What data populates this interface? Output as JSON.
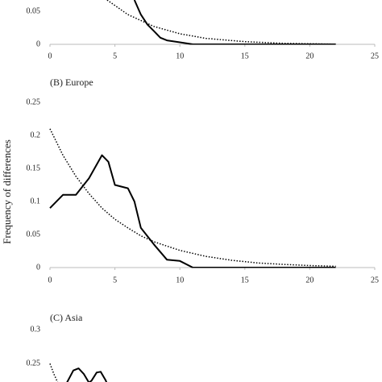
{
  "chart_data": [
    {
      "type": "line",
      "xlim": [
        0,
        25
      ],
      "xticks": [
        0,
        5,
        10,
        15,
        20,
        25
      ],
      "ylim": [
        0,
        0.067
      ],
      "yticks": [
        0,
        0.05
      ],
      "series": [
        {
          "color": "#000000",
          "style": "solid",
          "x": [
            6.5,
            7,
            7.5,
            8,
            8.5,
            9,
            10,
            11,
            12,
            22
          ],
          "values": [
            0.067,
            0.045,
            0.03,
            0.02,
            0.01,
            0.006,
            0.003,
            0,
            0,
            0
          ]
        },
        {
          "color": "#000000",
          "style": "dotted",
          "x": [
            4.4,
            6,
            8,
            10,
            12,
            15,
            18,
            22
          ],
          "values": [
            0.067,
            0.045,
            0.027,
            0.016,
            0.009,
            0.004,
            0.0015,
            0.0003
          ]
        }
      ]
    },
    {
      "type": "line",
      "title": "(B) Europe",
      "ylabel": "Frequency of differences",
      "xlim": [
        0,
        25
      ],
      "xticks": [
        0,
        5,
        10,
        15,
        20,
        25
      ],
      "ylim": [
        0,
        0.25
      ],
      "yticks": [
        0,
        0.05,
        0.1,
        0.15,
        0.2,
        0.25
      ],
      "series": [
        {
          "color": "#000000",
          "style": "solid",
          "x": [
            0,
            1,
            2,
            3,
            4,
            4.5,
            5,
            6,
            6.5,
            7,
            8,
            9,
            10,
            11,
            22
          ],
          "values": [
            0.09,
            0.11,
            0.11,
            0.135,
            0.17,
            0.16,
            0.125,
            0.12,
            0.1,
            0.06,
            0.035,
            0.012,
            0.01,
            0,
            0
          ]
        },
        {
          "color": "#000000",
          "style": "dotted",
          "x": [
            0,
            1,
            2,
            3,
            4,
            5,
            6,
            7,
            8,
            10,
            12,
            14,
            16,
            18,
            20,
            22
          ],
          "values": [
            0.21,
            0.17,
            0.138,
            0.112,
            0.09,
            0.073,
            0.06,
            0.048,
            0.039,
            0.026,
            0.017,
            0.011,
            0.007,
            0.0048,
            0.003,
            0.002
          ]
        }
      ]
    },
    {
      "type": "line",
      "title": "(C) Asia",
      "xlim": [
        0,
        25
      ],
      "ylim": [
        0.223,
        0.306
      ],
      "yticks": [
        0.25,
        0.3
      ],
      "series": [
        {
          "color": "#000000",
          "style": "solid",
          "x": [
            1.3,
            1.8,
            2.2,
            2.6,
            3,
            3.2,
            3.6,
            3.9,
            4.3,
            4.5
          ],
          "values": [
            0.222,
            0.24,
            0.243,
            0.235,
            0.222,
            0.225,
            0.237,
            0.238,
            0.225,
            0.215
          ]
        },
        {
          "color": "#000000",
          "style": "dotted",
          "x": [
            0,
            0.3,
            0.6
          ],
          "values": [
            0.25,
            0.235,
            0.222
          ]
        }
      ]
    }
  ]
}
